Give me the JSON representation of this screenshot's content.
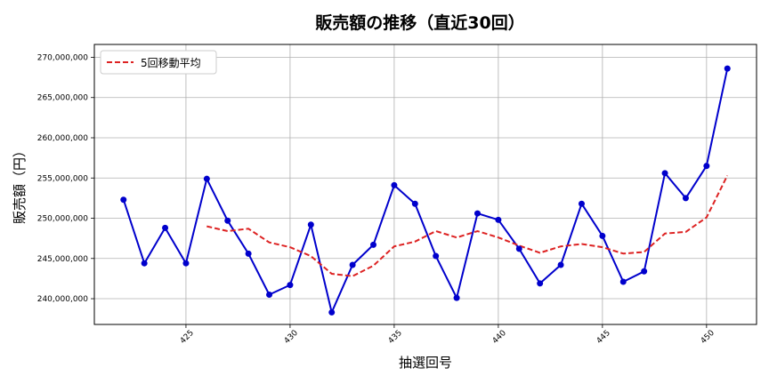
{
  "chart_data": {
    "type": "line",
    "title": "販売額の推移（直近30回）",
    "xlabel": "抽選回号",
    "ylabel": "販売額（円）",
    "xlim": [
      420.6,
      452.4
    ],
    "ylim": [
      236800000,
      271600000
    ],
    "x_ticks": [
      425,
      430,
      435,
      440,
      445,
      450
    ],
    "x_tick_labels": [
      "425",
      "430",
      "435",
      "440",
      "445",
      "450"
    ],
    "y_ticks": [
      240000000,
      245000000,
      250000000,
      255000000,
      260000000,
      265000000,
      270000000
    ],
    "y_tick_labels": [
      "240,000,000",
      "245,000,000",
      "250,000,000",
      "255,000,000",
      "260,000,000",
      "265,000,000",
      "270,000,000"
    ],
    "grid": true,
    "legend_position": "top-left",
    "series": [
      {
        "name": "",
        "color": "#0000cc",
        "style": "solid-with-markers",
        "x": [
          422,
          423,
          424,
          425,
          426,
          427,
          428,
          429,
          430,
          431,
          432,
          433,
          434,
          435,
          436,
          437,
          438,
          439,
          440,
          441,
          442,
          443,
          444,
          445,
          446,
          447,
          448,
          449,
          450,
          451
        ],
        "y": [
          252300000,
          244400000,
          248800000,
          244400000,
          254900000,
          249700000,
          245600000,
          240500000,
          241700000,
          249200000,
          238300000,
          244200000,
          246700000,
          254100000,
          251800000,
          245300000,
          240100000,
          250600000,
          249800000,
          246200000,
          241900000,
          244200000,
          251800000,
          247800000,
          242100000,
          243400000,
          255600000,
          252500000,
          256500000,
          268600000
        ]
      },
      {
        "name": "5回移動平均",
        "color": "#dd2222",
        "style": "dashed",
        "x": [
          426,
          427,
          428,
          429,
          430,
          431,
          432,
          433,
          434,
          435,
          436,
          437,
          438,
          439,
          440,
          441,
          442,
          443,
          444,
          445,
          446,
          447,
          448,
          449,
          450,
          451
        ],
        "y": [
          249000000,
          248400000,
          248700000,
          247000000,
          246400000,
          245300000,
          243100000,
          242800000,
          244100000,
          246500000,
          247100000,
          248400000,
          247600000,
          248400000,
          247600000,
          246600000,
          245700000,
          246500000,
          246800000,
          246400000,
          245600000,
          245800000,
          248100000,
          248300000,
          250100000,
          255300000
        ]
      }
    ]
  }
}
